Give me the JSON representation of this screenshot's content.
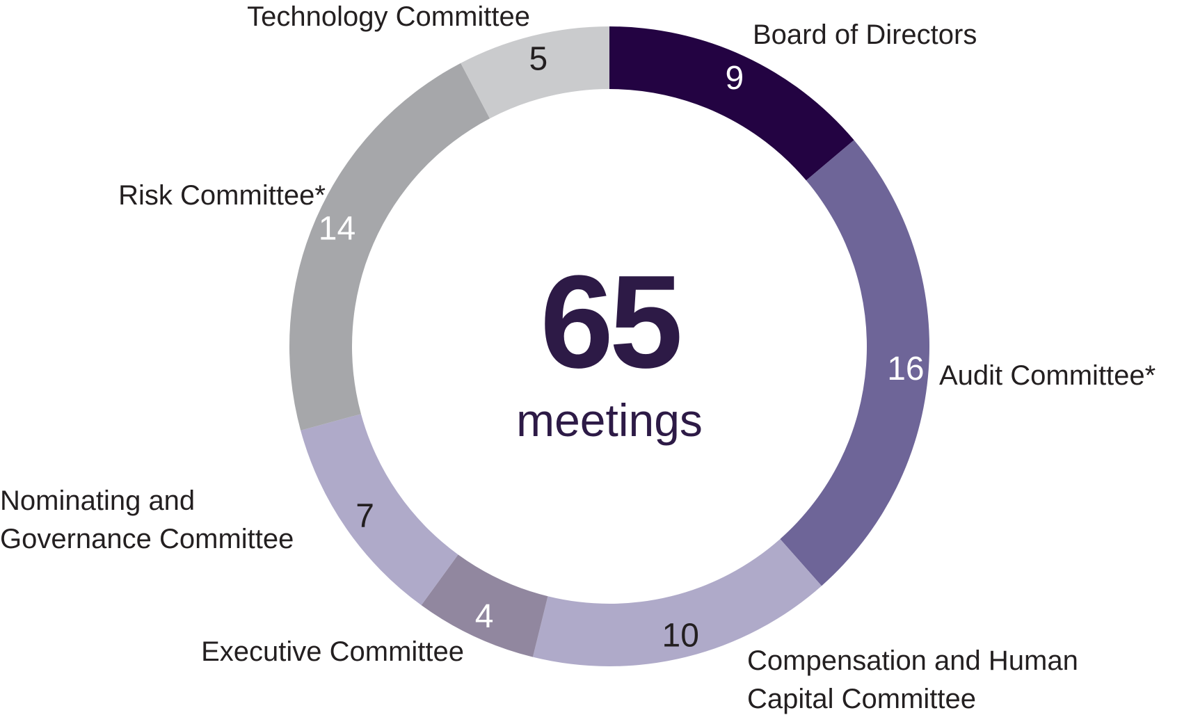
{
  "chart_data": {
    "type": "pie",
    "variant": "donut",
    "start_angle_deg": 0,
    "direction": "clockwise",
    "center": {
      "total": "65",
      "unit": "meetings"
    },
    "segments": [
      {
        "id": "board",
        "label_lines": [
          "Board of Directors"
        ],
        "value": 9,
        "color": "#230342",
        "value_color": "#ffffff"
      },
      {
        "id": "audit",
        "label_lines": [
          "Audit Committee*"
        ],
        "value": 16,
        "color": "#6e6598",
        "value_color": "#ffffff"
      },
      {
        "id": "compensation",
        "label_lines": [
          "Compensation and Human",
          "Capital Committee"
        ],
        "value": 10,
        "color": "#afaac9",
        "value_color": "#231f20"
      },
      {
        "id": "executive",
        "label_lines": [
          "Executive Committee"
        ],
        "value": 4,
        "color": "#91879f",
        "value_color": "#ffffff"
      },
      {
        "id": "nominating",
        "label_lines": [
          "Nominating and",
          "Governance Committee"
        ],
        "value": 7,
        "color": "#afaac9",
        "value_color": "#231f20"
      },
      {
        "id": "risk",
        "label_lines": [
          "Risk Committee*"
        ],
        "value": 14,
        "color": "#a6a7aa",
        "value_color": "#ffffff"
      },
      {
        "id": "technology",
        "label_lines": [
          "Technology Committee"
        ],
        "value": 5,
        "color": "#cacbcd",
        "value_color": "#231f20"
      }
    ],
    "text_color": "#231f20",
    "center_color": "#2d1a46"
  }
}
